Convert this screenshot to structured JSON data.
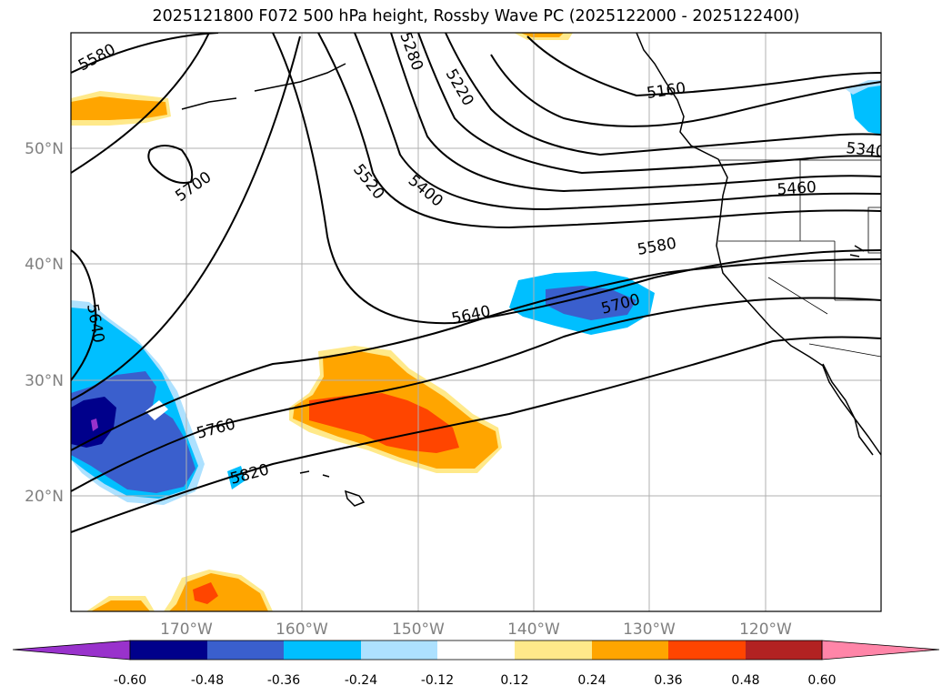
{
  "title": "2025121800 F072 500 hPa height, Rossby Wave PC (2025122000 - 2025122400)",
  "map": {
    "lat_labels": [
      "50°N",
      "40°N",
      "30°N",
      "20°N"
    ],
    "lon_labels": [
      "170°W",
      "160°W",
      "150°W",
      "140°W",
      "130°W",
      "120°W"
    ],
    "contour_labels": [
      "5580",
      "5700",
      "5640",
      "5280",
      "5220",
      "5160",
      "5340",
      "5520",
      "5400",
      "5460",
      "5580",
      "5640",
      "5700",
      "5760",
      "5820"
    ],
    "contour_interval": 60,
    "shading_variable": "Rossby Wave PC"
  },
  "colorbar": {
    "levels": [
      "-0.60",
      "-0.48",
      "-0.36",
      "-0.24",
      "-0.12",
      "0.12",
      "0.24",
      "0.36",
      "0.48",
      "0.60"
    ],
    "colors": {
      "below": "#9932CC",
      "b1": "#00008B",
      "b2": "#3A5FCD",
      "b3": "#00BFFF",
      "b4": "#ADE1FF",
      "b5": "#FFFFFF",
      "b6": "#FFE98A",
      "b7": "#FFA500",
      "b8": "#FF4500",
      "b9": "#B22222",
      "above": "#FF85A8"
    }
  }
}
